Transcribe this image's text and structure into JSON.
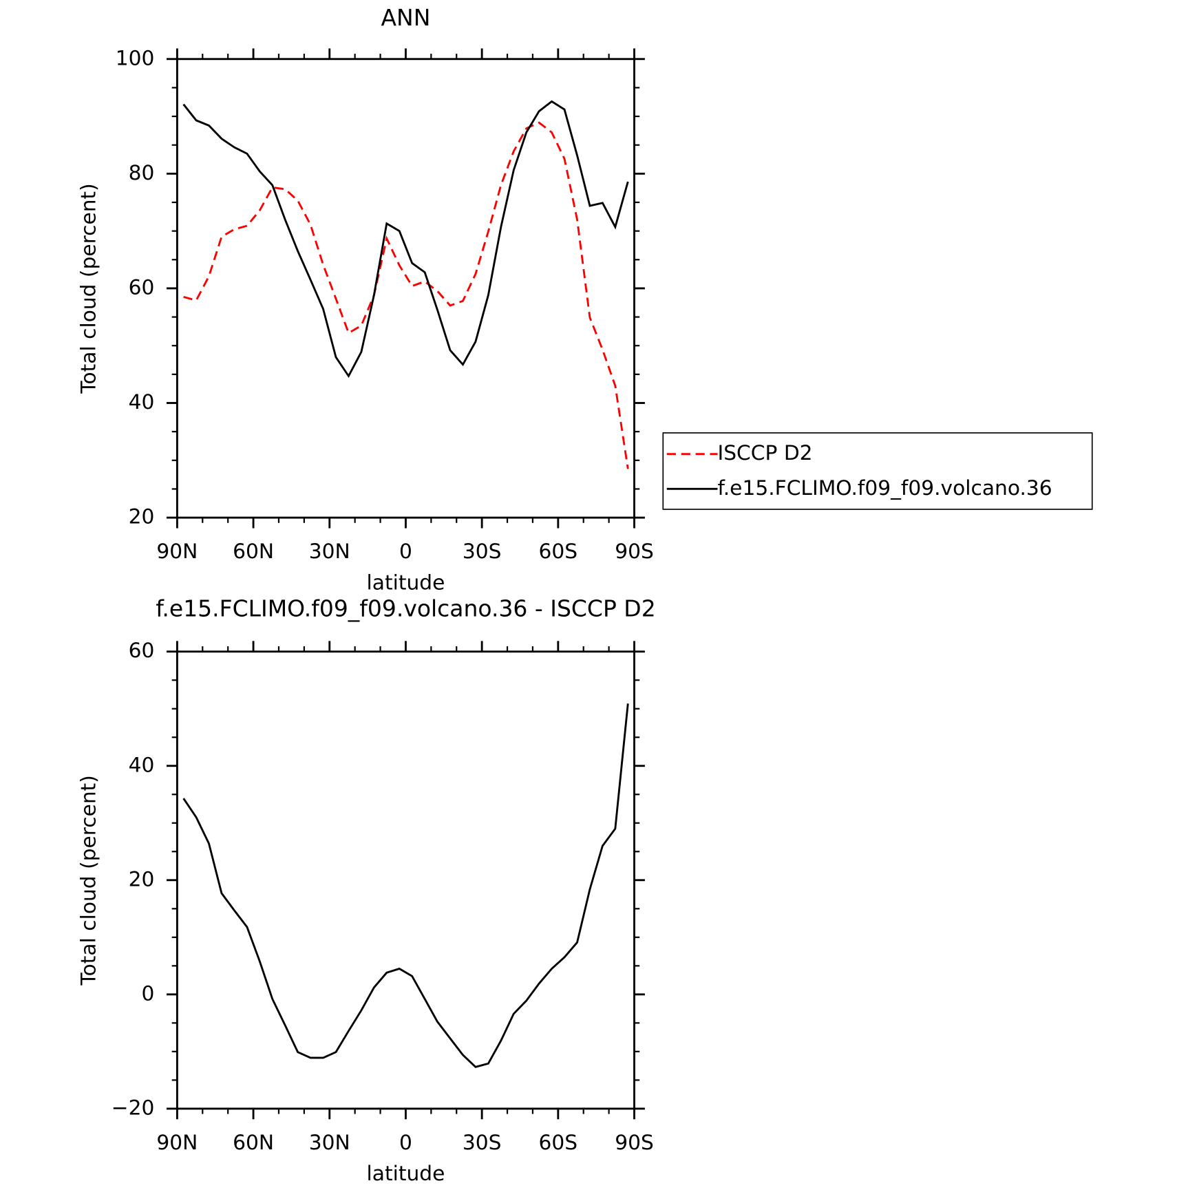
{
  "chart_data": [
    {
      "type": "line",
      "title": "ANN",
      "xlabel": "latitude",
      "ylabel": "Total cloud (percent)",
      "x": [
        87.5,
        82.5,
        77.5,
        72.5,
        67.5,
        62.5,
        57.5,
        52.5,
        47.5,
        42.5,
        37.5,
        32.5,
        27.5,
        22.5,
        17.5,
        12.5,
        7.5,
        2.5,
        -2.5,
        -7.5,
        -12.5,
        -17.5,
        -22.5,
        -27.5,
        -32.5,
        -37.5,
        -42.5,
        -47.5,
        -52.5,
        -57.5,
        -62.5,
        -67.5,
        -72.5,
        -77.5,
        -82.5,
        -87.5
      ],
      "series": [
        {
          "name": "ISCCP D2",
          "color": "#ff0000",
          "line_style": "dashed",
          "values": [
            58.5,
            57.9,
            62.1,
            69,
            70.3,
            70.9,
            73.6,
            77.6,
            77.3,
            75.3,
            71.1,
            64.1,
            58.2,
            52.2,
            53.5,
            58.8,
            68.7,
            64,
            60.4,
            61.2,
            59.5,
            57,
            57.8,
            62.5,
            69.9,
            78,
            83.9,
            87.9,
            88.9,
            87.2,
            82.6,
            72,
            54.9,
            49.3,
            43,
            28.5
          ]
        },
        {
          "name": "f.e15.FCLIMO.f09_f09.volcano.36",
          "color": "#000000",
          "line_style": "solid",
          "values": [
            92.1,
            89.3,
            88.4,
            86.1,
            84.6,
            83.5,
            80.4,
            78,
            72,
            66.5,
            61.5,
            56.4,
            48,
            44.7,
            48.9,
            58.8,
            71.3,
            70,
            64.4,
            62.8,
            56.2,
            49.2,
            46.7,
            50.7,
            58.8,
            70.7,
            80.6,
            87.2,
            90.9,
            92.6,
            91.2,
            83.2,
            74.4,
            74.9,
            70.7,
            78.6
          ]
        }
      ],
      "xlim": [
        90,
        -90
      ],
      "xticks": [
        {
          "value": 90,
          "label": "90N"
        },
        {
          "value": 60,
          "label": "60N"
        },
        {
          "value": 30,
          "label": "30N"
        },
        0,
        {
          "value": -30,
          "label": "30S"
        },
        {
          "value": -60,
          "label": "60S"
        },
        {
          "value": -90,
          "label": "90S"
        }
      ],
      "ylim": [
        20,
        100
      ],
      "yticks": [
        20,
        40,
        60,
        80,
        100
      ],
      "grid": false,
      "legend": "right"
    },
    {
      "type": "line",
      "title": "f.e15.FCLIMO.f09_f09.volcano.36 - ISCCP D2",
      "xlabel": "latitude",
      "ylabel": "Total cloud (percent)",
      "x": [
        87.5,
        82.5,
        77.5,
        72.5,
        67.5,
        62.5,
        57.5,
        52.5,
        47.5,
        42.5,
        37.5,
        32.5,
        27.5,
        22.5,
        17.5,
        12.5,
        7.5,
        2.5,
        -2.5,
        -7.5,
        -12.5,
        -17.5,
        -22.5,
        -27.5,
        -32.5,
        -37.5,
        -42.5,
        -47.5,
        -52.5,
        -57.5,
        -62.5,
        -67.5,
        -72.5,
        -77.5,
        -82.5,
        -87.5
      ],
      "series": [
        {
          "color": "#000000",
          "line_style": "solid",
          "values": [
            34.3,
            31,
            26.4,
            17.7,
            14.7,
            11.8,
            5.8,
            -0.8,
            -5.4,
            -10.1,
            -11.1,
            -11.1,
            -10.1,
            -6.4,
            -2.8,
            1.2,
            3.8,
            4.5,
            3.2,
            -0.8,
            -4.8,
            -7.7,
            -10.6,
            -12.7,
            -12.1,
            -8.1,
            -3.4,
            -1.1,
            1.9,
            4.5,
            6.5,
            9.1,
            18.4,
            26,
            29,
            50.9
          ]
        }
      ],
      "xlim": [
        90,
        -90
      ],
      "xticks": [
        {
          "value": 90,
          "label": "90N"
        },
        {
          "value": 60,
          "label": "60N"
        },
        {
          "value": 30,
          "label": "30N"
        },
        0,
        {
          "value": -30,
          "label": "30S"
        },
        {
          "value": -60,
          "label": "60S"
        },
        {
          "value": -90,
          "label": "90S"
        }
      ],
      "ylim": [
        -20,
        60
      ],
      "yticks": [
        {
          "value": -20,
          "label": "−20"
        },
        0,
        20,
        40,
        60
      ],
      "grid": false
    }
  ]
}
